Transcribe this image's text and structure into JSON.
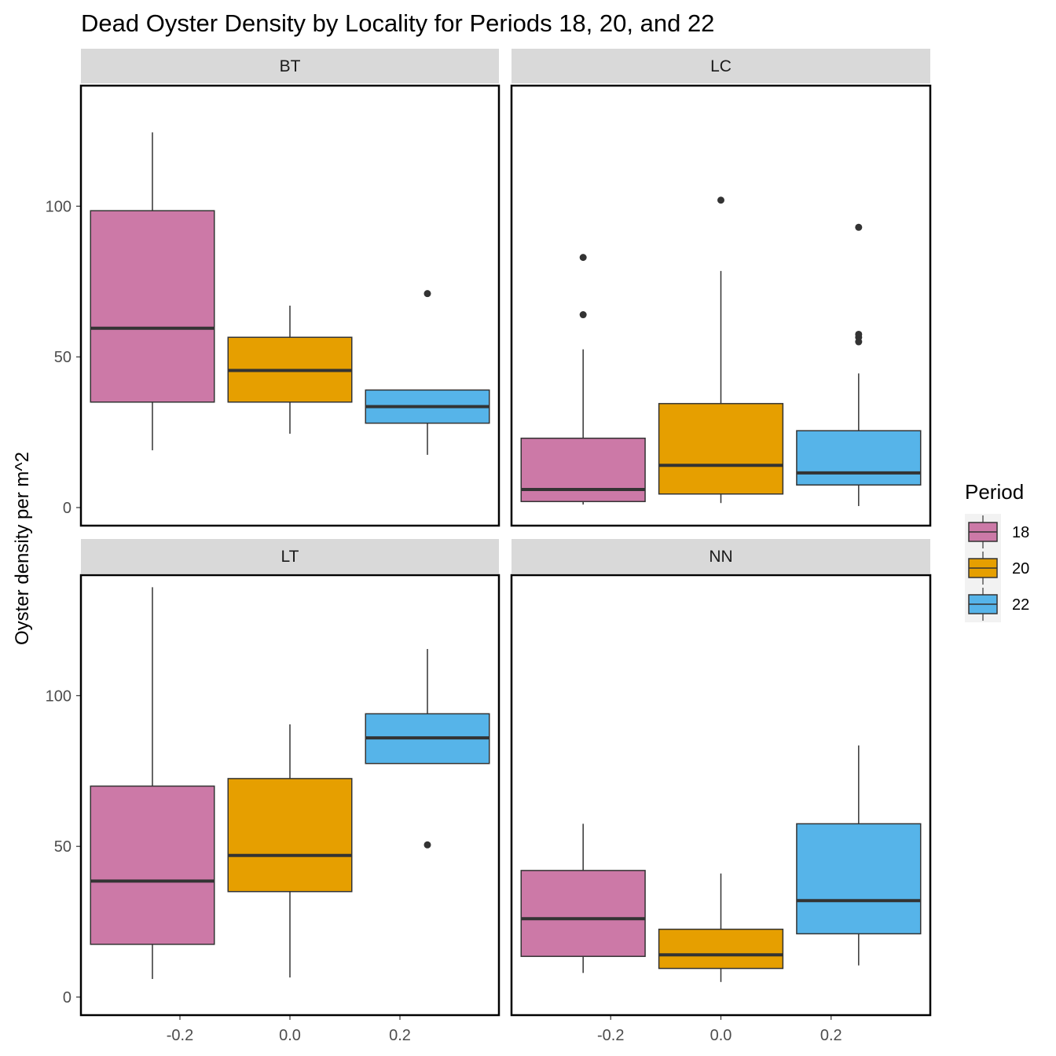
{
  "chart_data": {
    "type": "boxplot",
    "title": "Dead Oyster Density by Locality for Periods 18, 20, and 22",
    "xlabel": "",
    "ylabel": "Oyster density per m^2",
    "facet_layout": "2x2",
    "x_ticks": [
      -0.2,
      0.0,
      0.2
    ],
    "x_tick_labels": [
      "-0.2",
      "0.0",
      "0.2"
    ],
    "xlim": [
      -0.38,
      0.38
    ],
    "y_ticks": [
      0,
      50,
      100
    ],
    "y_tick_labels": [
      "0",
      "50",
      "100"
    ],
    "ylim": [
      -6,
      140
    ],
    "legend": {
      "title": "Period",
      "position": "right",
      "entries": [
        {
          "label": "18",
          "color": "#CC79A7"
        },
        {
          "label": "20",
          "color": "#E69F00"
        },
        {
          "label": "22",
          "color": "#56B4E9"
        }
      ]
    },
    "box_x_positions": [
      -0.25,
      0.0,
      0.25
    ],
    "box_width": 0.225,
    "grid": false,
    "panels": [
      {
        "locality": "BT",
        "boxes": [
          {
            "period": "18",
            "whisker_low": 19,
            "q1": 35,
            "median": 59.5,
            "q3": 98.5,
            "whisker_high": 124.5,
            "outliers": []
          },
          {
            "period": "20",
            "whisker_low": 24.5,
            "q1": 35,
            "median": 45.5,
            "q3": 56.5,
            "whisker_high": 67,
            "outliers": []
          },
          {
            "period": "22",
            "whisker_low": 17.5,
            "q1": 28,
            "median": 33.5,
            "q3": 39,
            "whisker_high": 39,
            "outliers": [
              71
            ]
          }
        ]
      },
      {
        "locality": "LC",
        "boxes": [
          {
            "period": "18",
            "whisker_low": 1,
            "q1": 2,
            "median": 6,
            "q3": 23,
            "whisker_high": 52.5,
            "outliers": [
              64,
              83
            ]
          },
          {
            "period": "20",
            "whisker_low": 1.5,
            "q1": 4.5,
            "median": 14,
            "q3": 34.5,
            "whisker_high": 78.5,
            "outliers": [
              102
            ]
          },
          {
            "period": "22",
            "whisker_low": 0.5,
            "q1": 7.5,
            "median": 11.5,
            "q3": 25.5,
            "whisker_high": 44.5,
            "outliers": [
              55,
              56.5,
              57.5,
              93
            ]
          }
        ]
      },
      {
        "locality": "LT",
        "boxes": [
          {
            "period": "18",
            "whisker_low": 6,
            "q1": 17.5,
            "median": 38.5,
            "q3": 70,
            "whisker_high": 136,
            "outliers": []
          },
          {
            "period": "20",
            "whisker_low": 6.5,
            "q1": 35,
            "median": 47,
            "q3": 72.5,
            "whisker_high": 90.5,
            "outliers": []
          },
          {
            "period": "22",
            "whisker_low": 77.5,
            "q1": 77.5,
            "median": 86,
            "q3": 94,
            "whisker_high": 115.5,
            "outliers": [
              50.5
            ]
          }
        ]
      },
      {
        "locality": "NN",
        "boxes": [
          {
            "period": "18",
            "whisker_low": 8,
            "q1": 13.5,
            "median": 26,
            "q3": 42,
            "whisker_high": 57.5,
            "outliers": []
          },
          {
            "period": "20",
            "whisker_low": 5,
            "q1": 9.5,
            "median": 14,
            "q3": 22.5,
            "whisker_high": 41,
            "outliers": []
          },
          {
            "period": "22",
            "whisker_low": 10.5,
            "q1": 21,
            "median": 32,
            "q3": 57.5,
            "whisker_high": 83.5,
            "outliers": []
          }
        ]
      }
    ]
  }
}
